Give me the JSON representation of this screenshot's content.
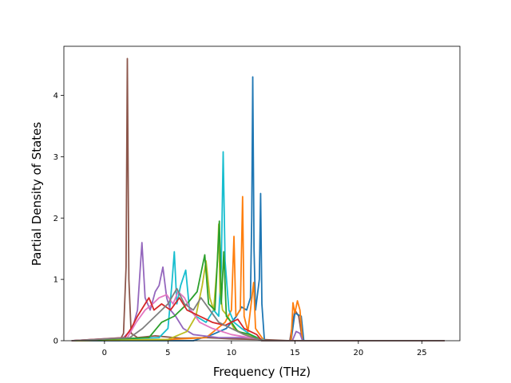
{
  "chart_data": {
    "type": "line",
    "title": "",
    "xlabel": "Frequency (THz)",
    "ylabel": "Partial Density of States",
    "xlim": [
      -3.2,
      28.0
    ],
    "ylim": [
      0,
      4.8
    ],
    "xticks": [
      0,
      5,
      10,
      15,
      20,
      25
    ],
    "yticks": [
      0,
      1,
      2,
      3,
      4
    ],
    "grid": false,
    "legend": "none",
    "x_range_of_data": [
      -2.6,
      26.8
    ],
    "series": [
      {
        "color": "#8c564b",
        "points": [
          [
            -2.6,
            0
          ],
          [
            1.2,
            0
          ],
          [
            1.5,
            0.12
          ],
          [
            1.7,
            1.2
          ],
          [
            1.8,
            4.6
          ],
          [
            1.92,
            1.0
          ],
          [
            2.1,
            0.12
          ],
          [
            2.6,
            0.05
          ],
          [
            4,
            0.08
          ],
          [
            6,
            0.04
          ],
          [
            8,
            0.05
          ],
          [
            10,
            0.03
          ],
          [
            12.3,
            0.02
          ],
          [
            14.6,
            0
          ],
          [
            15.0,
            0.5
          ],
          [
            15.3,
            0.4
          ],
          [
            15.6,
            0
          ],
          [
            26.8,
            0
          ]
        ]
      },
      {
        "color": "#1f77b4",
        "points": [
          [
            -2.6,
            0
          ],
          [
            7,
            0
          ],
          [
            8.5,
            0.1
          ],
          [
            9.6,
            0.2
          ],
          [
            10.4,
            0.4
          ],
          [
            10.8,
            0.55
          ],
          [
            11.2,
            0.5
          ],
          [
            11.5,
            0.7
          ],
          [
            11.6,
            2.0
          ],
          [
            11.68,
            4.3
          ],
          [
            11.78,
            1.5
          ],
          [
            11.9,
            0.5
          ],
          [
            12.2,
            1.0
          ],
          [
            12.3,
            2.4
          ],
          [
            12.4,
            0.6
          ],
          [
            12.6,
            0
          ],
          [
            14.7,
            0
          ],
          [
            15.0,
            0.45
          ],
          [
            15.5,
            0.4
          ],
          [
            15.7,
            0
          ],
          [
            26.8,
            0
          ]
        ]
      },
      {
        "color": "#ff7f0e",
        "points": [
          [
            -2.6,
            0
          ],
          [
            5,
            0.02
          ],
          [
            8,
            0.05
          ],
          [
            9.5,
            0.3
          ],
          [
            10.0,
            0.5
          ],
          [
            10.2,
            1.7
          ],
          [
            10.35,
            0.4
          ],
          [
            10.7,
            0.5
          ],
          [
            10.88,
            2.35
          ],
          [
            11.0,
            0.4
          ],
          [
            11.3,
            0.15
          ],
          [
            11.75,
            0.95
          ],
          [
            11.9,
            0.2
          ],
          [
            12.4,
            0.05
          ],
          [
            12.6,
            0
          ],
          [
            14.7,
            0
          ],
          [
            14.85,
            0.62
          ],
          [
            15.0,
            0.45
          ],
          [
            15.2,
            0.65
          ],
          [
            15.4,
            0.5
          ],
          [
            15.6,
            0
          ],
          [
            26.8,
            0
          ]
        ]
      },
      {
        "color": "#17becf",
        "points": [
          [
            -2.6,
            0
          ],
          [
            4.3,
            0.05
          ],
          [
            5.0,
            0.2
          ],
          [
            5.3,
            0.9
          ],
          [
            5.5,
            1.45
          ],
          [
            5.7,
            0.6
          ],
          [
            6.0,
            0.9
          ],
          [
            6.4,
            1.15
          ],
          [
            6.7,
            0.5
          ],
          [
            7.2,
            0.4
          ],
          [
            8.0,
            0.3
          ],
          [
            8.6,
            0.5
          ],
          [
            9.0,
            0.4
          ],
          [
            9.2,
            1.2
          ],
          [
            9.35,
            3.08
          ],
          [
            9.5,
            1.3
          ],
          [
            9.8,
            0.5
          ],
          [
            10.2,
            0.3
          ],
          [
            10.8,
            0.2
          ],
          [
            11.5,
            0.1
          ],
          [
            12.4,
            0.02
          ],
          [
            12.6,
            0
          ],
          [
            26.8,
            0
          ]
        ]
      },
      {
        "color": "#9467bd",
        "points": [
          [
            -2.6,
            0
          ],
          [
            1.5,
            0.05
          ],
          [
            2.2,
            0.2
          ],
          [
            2.6,
            0.5
          ],
          [
            2.95,
            1.6
          ],
          [
            3.2,
            0.7
          ],
          [
            3.6,
            0.5
          ],
          [
            4.0,
            0.8
          ],
          [
            4.3,
            0.9
          ],
          [
            4.6,
            1.2
          ],
          [
            4.9,
            0.7
          ],
          [
            5.2,
            0.5
          ],
          [
            5.6,
            0.4
          ],
          [
            6.2,
            0.2
          ],
          [
            7,
            0.1
          ],
          [
            9,
            0.05
          ],
          [
            12,
            0.05
          ],
          [
            12.4,
            0
          ],
          [
            14.8,
            0
          ],
          [
            15.1,
            0.15
          ],
          [
            15.4,
            0.12
          ],
          [
            15.6,
            0
          ],
          [
            26.8,
            0
          ]
        ]
      },
      {
        "color": "#bcbd22",
        "points": [
          [
            -2.6,
            0
          ],
          [
            5,
            0.02
          ],
          [
            6.5,
            0.15
          ],
          [
            7.2,
            0.4
          ],
          [
            7.7,
            0.9
          ],
          [
            8.0,
            1.3
          ],
          [
            8.3,
            0.7
          ],
          [
            8.6,
            0.5
          ],
          [
            8.9,
            1.3
          ],
          [
            9.0,
            1.9
          ],
          [
            9.1,
            0.8
          ],
          [
            9.3,
            0.5
          ],
          [
            9.7,
            0.4
          ],
          [
            10.2,
            0.2
          ],
          [
            11,
            0.1
          ],
          [
            12,
            0.05
          ],
          [
            12.4,
            0
          ],
          [
            26.8,
            0
          ]
        ]
      },
      {
        "color": "#2ca02c",
        "points": [
          [
            -2.6,
            0
          ],
          [
            3.5,
            0.05
          ],
          [
            4.5,
            0.3
          ],
          [
            5.5,
            0.4
          ],
          [
            6.5,
            0.6
          ],
          [
            7.3,
            0.8
          ],
          [
            7.9,
            1.4
          ],
          [
            8.2,
            0.6
          ],
          [
            8.7,
            0.5
          ],
          [
            9.05,
            1.95
          ],
          [
            9.2,
            0.6
          ],
          [
            9.4,
            1.45
          ],
          [
            9.6,
            0.4
          ],
          [
            10.0,
            0.3
          ],
          [
            10.5,
            0.15
          ],
          [
            11.5,
            0.1
          ],
          [
            12.4,
            0
          ],
          [
            26.8,
            0
          ]
        ]
      },
      {
        "color": "#e377c2",
        "points": [
          [
            -2.6,
            0
          ],
          [
            1.8,
            0.05
          ],
          [
            2.5,
            0.3
          ],
          [
            3.2,
            0.5
          ],
          [
            3.8,
            0.6
          ],
          [
            4.3,
            0.7
          ],
          [
            4.9,
            0.75
          ],
          [
            5.4,
            0.6
          ],
          [
            5.8,
            0.8
          ],
          [
            6.3,
            0.7
          ],
          [
            6.8,
            0.5
          ],
          [
            7.5,
            0.3
          ],
          [
            8.5,
            0.2
          ],
          [
            10,
            0.1
          ],
          [
            12,
            0.03
          ],
          [
            12.4,
            0
          ],
          [
            26.8,
            0
          ]
        ]
      },
      {
        "color": "#d62728",
        "points": [
          [
            -2.6,
            0
          ],
          [
            1.6,
            0.05
          ],
          [
            2.1,
            0.2
          ],
          [
            2.6,
            0.4
          ],
          [
            3.2,
            0.6
          ],
          [
            3.5,
            0.7
          ],
          [
            3.9,
            0.5
          ],
          [
            4.5,
            0.6
          ],
          [
            5.2,
            0.5
          ],
          [
            5.9,
            0.7
          ],
          [
            6.5,
            0.5
          ],
          [
            7.5,
            0.4
          ],
          [
            8.5,
            0.3
          ],
          [
            9.5,
            0.25
          ],
          [
            10.5,
            0.35
          ],
          [
            11,
            0.2
          ],
          [
            12,
            0.1
          ],
          [
            12.4,
            0
          ],
          [
            26.8,
            0
          ]
        ]
      },
      {
        "color": "#7f7f7f",
        "points": [
          [
            -2.6,
            0
          ],
          [
            2,
            0.05
          ],
          [
            3,
            0.2
          ],
          [
            4,
            0.4
          ],
          [
            5,
            0.6
          ],
          [
            5.7,
            0.85
          ],
          [
            6.3,
            0.6
          ],
          [
            7,
            0.5
          ],
          [
            7.6,
            0.7
          ],
          [
            8.3,
            0.5
          ],
          [
            9,
            0.3
          ],
          [
            10,
            0.2
          ],
          [
            11,
            0.1
          ],
          [
            12.4,
            0
          ],
          [
            26.8,
            0
          ]
        ]
      }
    ]
  }
}
